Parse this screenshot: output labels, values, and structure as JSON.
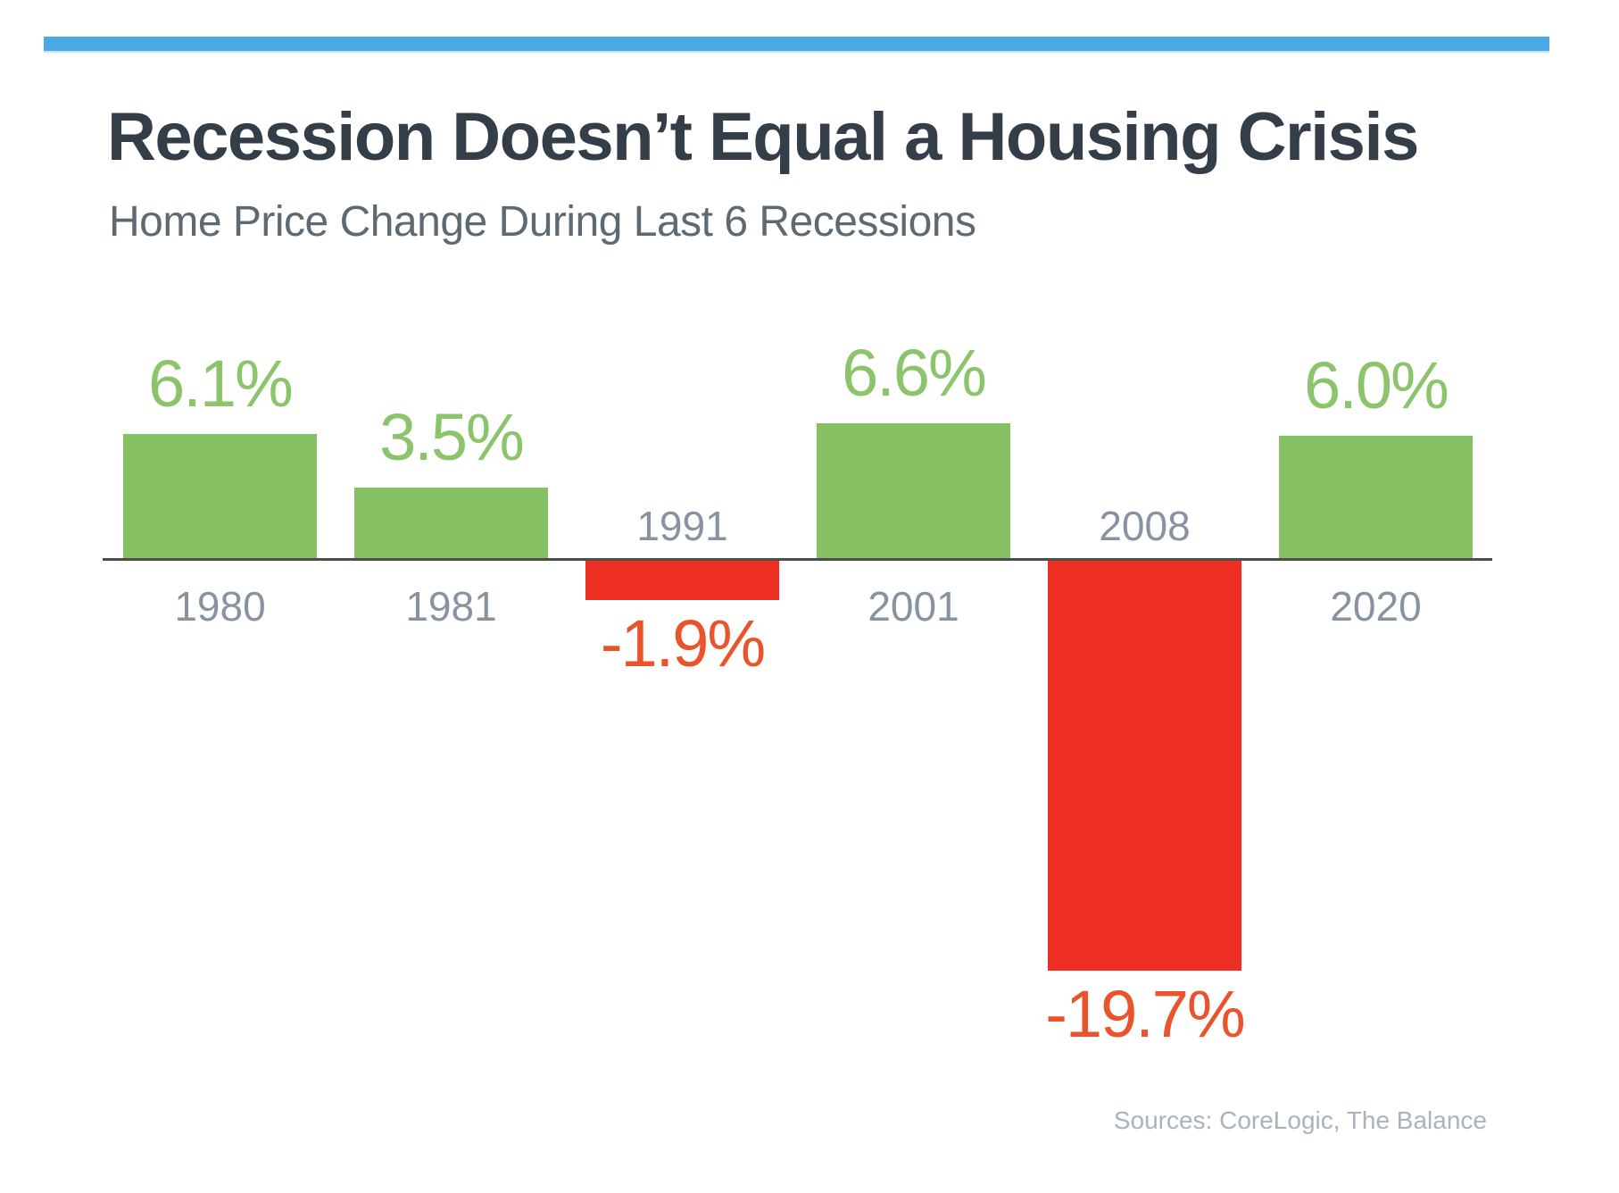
{
  "header": {
    "title": "Recession Doesn’t Equal a Housing Crisis",
    "subtitle": "Home Price Change During Last 6 Recessions"
  },
  "footer": {
    "source": "Sources: CoreLogic, The Balance"
  },
  "colors": {
    "background": "#FFFFFF",
    "accent_bar": "#4BA9E8",
    "title": "#333E48",
    "subtitle": "#5E6A73",
    "positive_bar": "#85C163",
    "negative_bar": "#ED3023",
    "positive_label": "#8CC46B",
    "negative_label": "#E9542D",
    "year_label": "#8793A1",
    "axis_line": "#4D4D4D",
    "source_text": "#A9B3BB"
  },
  "chart_data": {
    "type": "bar",
    "title": "Recession Doesn’t Equal a Housing Crisis",
    "subtitle": "Home Price Change During Last 6 Recessions",
    "categories": [
      "1980",
      "1981",
      "1991",
      "2001",
      "2008",
      "2020"
    ],
    "values": [
      6.1,
      3.5,
      -1.9,
      6.6,
      -19.7,
      6.0
    ],
    "value_labels": [
      "6.1%",
      "3.5%",
      "-1.9%",
      "6.6%",
      "-19.7%",
      "6.0%"
    ],
    "unit": "%",
    "ylim": [
      -22,
      8
    ],
    "grid": false,
    "legend": false,
    "baseline": 0,
    "value_label_position": "outside-end",
    "category_label_position": "opposite-side-of-zero-axis",
    "positive_color": "#85C163",
    "negative_color": "#ED3023",
    "source": "Sources: CoreLogic, The Balance"
  }
}
